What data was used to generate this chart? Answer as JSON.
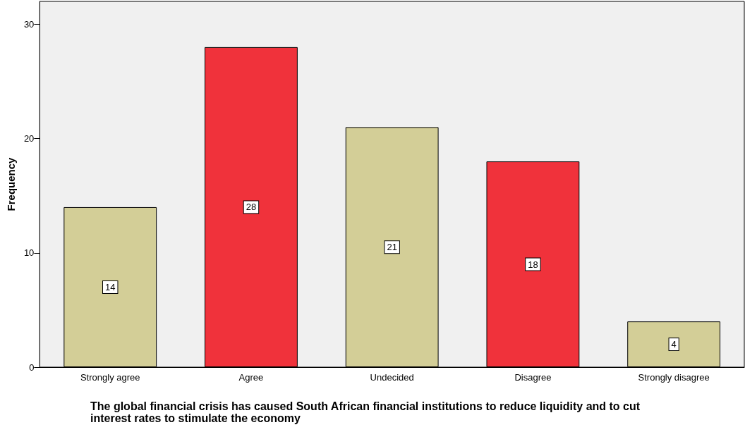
{
  "chart_data": {
    "type": "bar",
    "xlabel": "The global financial crisis has caused South African financial institutions to reduce liquidity and to cut interest rates to stimulate the economy",
    "ylabel": "Frequency",
    "categories": [
      "Strongly agree",
      "Agree",
      "Undecided",
      "Disagree",
      "Strongly disagree"
    ],
    "values": [
      14,
      28,
      21,
      18,
      4
    ],
    "colors": [
      "#d3ce97",
      "#f0323b",
      "#d3ce97",
      "#f0323b",
      "#d3ce97"
    ],
    "ylim": [
      0,
      32
    ],
    "yticks": [
      0,
      10,
      20,
      30
    ],
    "data_labels": true,
    "grid": false
  }
}
